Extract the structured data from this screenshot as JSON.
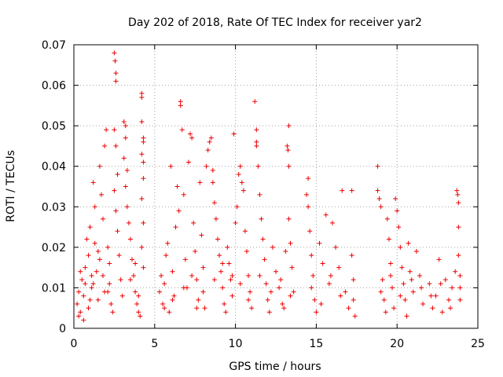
{
  "chart_data": {
    "type": "scatter",
    "title": "Day 202 of 2018, Rate Of TEC Index for receiver yar2",
    "xlabel": "GPS time / hours",
    "ylabel": "ROTI / TECUs",
    "xlim": [
      0,
      25
    ],
    "ylim": [
      0,
      0.07
    ],
    "xticks": [
      0,
      5,
      10,
      15,
      20,
      25
    ],
    "yticks": [
      0,
      0.01,
      0.02,
      0.03,
      0.04,
      0.05,
      0.06,
      0.07
    ],
    "ytick_labels": [
      "0",
      "0.01",
      "0.02",
      "0.03",
      "0.04",
      "0.05",
      "0.06",
      "0.07"
    ],
    "grid": true,
    "marker": "+",
    "color": "#ee0000",
    "series": [
      {
        "name": "ROTI",
        "points": [
          [
            0.2,
            0.006
          ],
          [
            0.3,
            0.009
          ],
          [
            0.4,
            0.004
          ],
          [
            0.5,
            0.012
          ],
          [
            0.6,
            0.008
          ],
          [
            0.7,
            0.015
          ],
          [
            0.8,
            0.022
          ],
          [
            0.9,
            0.018
          ],
          [
            1.0,
            0.025
          ],
          [
            1.1,
            0.01
          ],
          [
            1.2,
            0.036
          ],
          [
            1.3,
            0.03
          ],
          [
            1.4,
            0.014
          ],
          [
            1.5,
            0.007
          ],
          [
            1.6,
            0.04
          ],
          [
            1.7,
            0.033
          ],
          [
            1.8,
            0.027
          ],
          [
            1.9,
            0.045
          ],
          [
            2.0,
            0.049
          ],
          [
            2.1,
            0.02
          ],
          [
            0.3,
            0.003
          ],
          [
            0.6,
            0.002
          ],
          [
            0.9,
            0.005
          ],
          [
            1.2,
            0.011
          ],
          [
            1.5,
            0.019
          ],
          [
            1.8,
            0.013
          ],
          [
            2.1,
            0.009
          ],
          [
            2.2,
            0.016
          ],
          [
            2.3,
            0.006
          ],
          [
            2.4,
            0.004
          ],
          [
            2.5,
            0.068
          ],
          [
            2.55,
            0.066
          ],
          [
            2.6,
            0.063
          ],
          [
            2.6,
            0.061
          ],
          [
            2.5,
            0.049
          ],
          [
            2.6,
            0.045
          ],
          [
            2.7,
            0.038
          ],
          [
            2.5,
            0.034
          ],
          [
            2.6,
            0.029
          ],
          [
            2.7,
            0.024
          ],
          [
            2.8,
            0.018
          ],
          [
            2.9,
            0.012
          ],
          [
            3.0,
            0.008
          ],
          [
            3.1,
            0.051
          ],
          [
            3.2,
            0.05
          ],
          [
            3.2,
            0.047
          ],
          [
            3.1,
            0.042
          ],
          [
            3.3,
            0.039
          ],
          [
            3.2,
            0.035
          ],
          [
            3.3,
            0.03
          ],
          [
            3.4,
            0.026
          ],
          [
            3.5,
            0.022
          ],
          [
            3.6,
            0.017
          ],
          [
            3.7,
            0.013
          ],
          [
            3.8,
            0.009
          ],
          [
            3.9,
            0.006
          ],
          [
            4.0,
            0.004
          ],
          [
            4.1,
            0.003
          ],
          [
            4.2,
            0.058
          ],
          [
            4.2,
            0.057
          ],
          [
            4.2,
            0.051
          ],
          [
            4.3,
            0.047
          ],
          [
            4.3,
            0.046
          ],
          [
            4.2,
            0.043
          ],
          [
            4.3,
            0.041
          ],
          [
            4.3,
            0.037
          ],
          [
            4.2,
            0.032
          ],
          [
            4.3,
            0.026
          ],
          [
            4.2,
            0.02
          ],
          [
            4.3,
            0.015
          ],
          [
            5.3,
            0.009
          ],
          [
            5.4,
            0.013
          ],
          [
            5.5,
            0.006
          ],
          [
            5.6,
            0.011
          ],
          [
            5.7,
            0.018
          ],
          [
            5.8,
            0.021
          ],
          [
            5.9,
            0.004
          ],
          [
            6.0,
            0.04
          ],
          [
            6.1,
            0.014
          ],
          [
            6.2,
            0.008
          ],
          [
            6.3,
            0.025
          ],
          [
            6.4,
            0.035
          ],
          [
            6.5,
            0.029
          ],
          [
            6.6,
            0.056
          ],
          [
            6.6,
            0.055
          ],
          [
            6.7,
            0.049
          ],
          [
            6.8,
            0.033
          ],
          [
            6.9,
            0.017
          ],
          [
            7.0,
            0.01
          ],
          [
            7.1,
            0.041
          ],
          [
            7.2,
            0.048
          ],
          [
            7.3,
            0.047
          ],
          [
            7.4,
            0.026
          ],
          [
            7.5,
            0.019
          ],
          [
            7.6,
            0.012
          ],
          [
            7.7,
            0.007
          ],
          [
            7.8,
            0.036
          ],
          [
            7.9,
            0.023
          ],
          [
            8.0,
            0.015
          ],
          [
            8.1,
            0.005
          ],
          [
            8.2,
            0.04
          ],
          [
            8.3,
            0.044
          ],
          [
            8.4,
            0.046
          ],
          [
            8.5,
            0.047
          ],
          [
            8.6,
            0.039
          ],
          [
            8.6,
            0.036
          ],
          [
            8.7,
            0.031
          ],
          [
            8.8,
            0.027
          ],
          [
            8.9,
            0.022
          ],
          [
            9.0,
            0.018
          ],
          [
            9.1,
            0.014
          ],
          [
            9.2,
            0.01
          ],
          [
            9.3,
            0.006
          ],
          [
            9.4,
            0.004
          ],
          [
            9.5,
            0.02
          ],
          [
            9.6,
            0.016
          ],
          [
            9.7,
            0.012
          ],
          [
            9.8,
            0.008
          ],
          [
            9.9,
            0.048
          ],
          [
            10.0,
            0.026
          ],
          [
            10.1,
            0.03
          ],
          [
            10.2,
            0.038
          ],
          [
            10.3,
            0.04
          ],
          [
            10.4,
            0.036
          ],
          [
            10.5,
            0.034
          ],
          [
            10.6,
            0.024
          ],
          [
            10.7,
            0.019
          ],
          [
            10.8,
            0.013
          ],
          [
            10.9,
            0.009
          ],
          [
            11.0,
            0.005
          ],
          [
            11.2,
            0.056
          ],
          [
            11.3,
            0.049
          ],
          [
            11.3,
            0.046
          ],
          [
            11.3,
            0.045
          ],
          [
            11.4,
            0.04
          ],
          [
            11.5,
            0.033
          ],
          [
            11.6,
            0.027
          ],
          [
            11.7,
            0.022
          ],
          [
            11.8,
            0.017
          ],
          [
            11.9,
            0.011
          ],
          [
            12.0,
            0.007
          ],
          [
            12.1,
            0.004
          ],
          [
            12.3,
            0.02
          ],
          [
            12.5,
            0.014
          ],
          [
            12.7,
            0.01
          ],
          [
            12.9,
            0.006
          ],
          [
            13.1,
            0.019
          ],
          [
            13.2,
            0.045
          ],
          [
            13.25,
            0.044
          ],
          [
            13.3,
            0.05
          ],
          [
            13.3,
            0.04
          ],
          [
            13.3,
            0.027
          ],
          [
            13.4,
            0.021
          ],
          [
            13.5,
            0.015
          ],
          [
            13.6,
            0.009
          ],
          [
            14.4,
            0.033
          ],
          [
            14.5,
            0.037
          ],
          [
            14.5,
            0.03
          ],
          [
            14.6,
            0.024
          ],
          [
            14.7,
            0.018
          ],
          [
            14.8,
            0.013
          ],
          [
            14.9,
            0.007
          ],
          [
            15.0,
            0.004
          ],
          [
            15.2,
            0.021
          ],
          [
            15.4,
            0.016
          ],
          [
            15.6,
            0.028
          ],
          [
            15.8,
            0.011
          ],
          [
            16.0,
            0.026
          ],
          [
            16.2,
            0.02
          ],
          [
            16.4,
            0.015
          ],
          [
            16.6,
            0.034
          ],
          [
            16.8,
            0.009
          ],
          [
            17.0,
            0.005
          ],
          [
            17.2,
            0.034
          ],
          [
            17.2,
            0.018
          ],
          [
            17.3,
            0.012
          ],
          [
            17.3,
            0.007
          ],
          [
            17.4,
            0.003
          ],
          [
            18.8,
            0.04
          ],
          [
            18.8,
            0.034
          ],
          [
            18.9,
            0.032
          ],
          [
            19.0,
            0.03
          ],
          [
            19.1,
            0.012
          ],
          [
            19.2,
            0.007
          ],
          [
            19.3,
            0.004
          ],
          [
            19.4,
            0.027
          ],
          [
            19.5,
            0.022
          ],
          [
            19.6,
            0.016
          ],
          [
            19.7,
            0.01
          ],
          [
            19.8,
            0.005
          ],
          [
            19.9,
            0.032
          ],
          [
            20.0,
            0.029
          ],
          [
            20.1,
            0.025
          ],
          [
            20.2,
            0.02
          ],
          [
            20.3,
            0.015
          ],
          [
            20.4,
            0.011
          ],
          [
            20.5,
            0.007
          ],
          [
            20.6,
            0.003
          ],
          [
            20.7,
            0.021
          ],
          [
            20.8,
            0.014
          ],
          [
            21.0,
            0.009
          ],
          [
            21.2,
            0.019
          ],
          [
            21.4,
            0.013
          ],
          [
            21.6,
            0.006
          ],
          [
            22.0,
            0.011
          ],
          [
            22.2,
            0.005
          ],
          [
            22.4,
            0.008
          ],
          [
            22.6,
            0.017
          ],
          [
            22.8,
            0.004
          ],
          [
            23.0,
            0.012
          ],
          [
            23.2,
            0.007
          ],
          [
            23.4,
            0.01
          ],
          [
            23.6,
            0.014
          ],
          [
            23.7,
            0.034
          ],
          [
            23.75,
            0.033
          ],
          [
            23.8,
            0.031
          ],
          [
            23.8,
            0.025
          ],
          [
            23.8,
            0.018
          ],
          [
            23.9,
            0.013
          ],
          [
            23.9,
            0.007
          ],
          [
            0.4,
            0.014
          ],
          [
            0.7,
            0.011
          ],
          [
            1.0,
            0.007
          ],
          [
            1.3,
            0.021
          ],
          [
            1.6,
            0.017
          ],
          [
            1.9,
            0.009
          ],
          [
            3.5,
            0.012
          ],
          [
            3.8,
            0.016
          ],
          [
            4.0,
            0.008
          ],
          [
            5.6,
            0.005
          ],
          [
            6.1,
            0.007
          ],
          [
            6.8,
            0.01
          ],
          [
            7.3,
            0.013
          ],
          [
            8.0,
            0.009
          ],
          [
            8.7,
            0.012
          ],
          [
            9.2,
            0.016
          ],
          [
            9.8,
            0.013
          ],
          [
            10.3,
            0.011
          ],
          [
            10.8,
            0.007
          ],
          [
            11.5,
            0.013
          ],
          [
            12.2,
            0.009
          ],
          [
            12.8,
            0.012
          ],
          [
            13.4,
            0.008
          ],
          [
            14.7,
            0.01
          ],
          [
            15.3,
            0.006
          ],
          [
            15.9,
            0.013
          ],
          [
            16.5,
            0.008
          ],
          [
            19.0,
            0.009
          ],
          [
            19.6,
            0.013
          ],
          [
            20.2,
            0.008
          ],
          [
            20.9,
            0.012
          ],
          [
            21.5,
            0.01
          ],
          [
            22.1,
            0.008
          ],
          [
            22.7,
            0.011
          ],
          [
            23.3,
            0.005
          ],
          [
            23.9,
            0.01
          ],
          [
            1.1,
            0.013
          ],
          [
            2.2,
            0.011
          ],
          [
            7.6,
            0.005
          ],
          [
            13.0,
            0.005
          ]
        ]
      }
    ]
  }
}
